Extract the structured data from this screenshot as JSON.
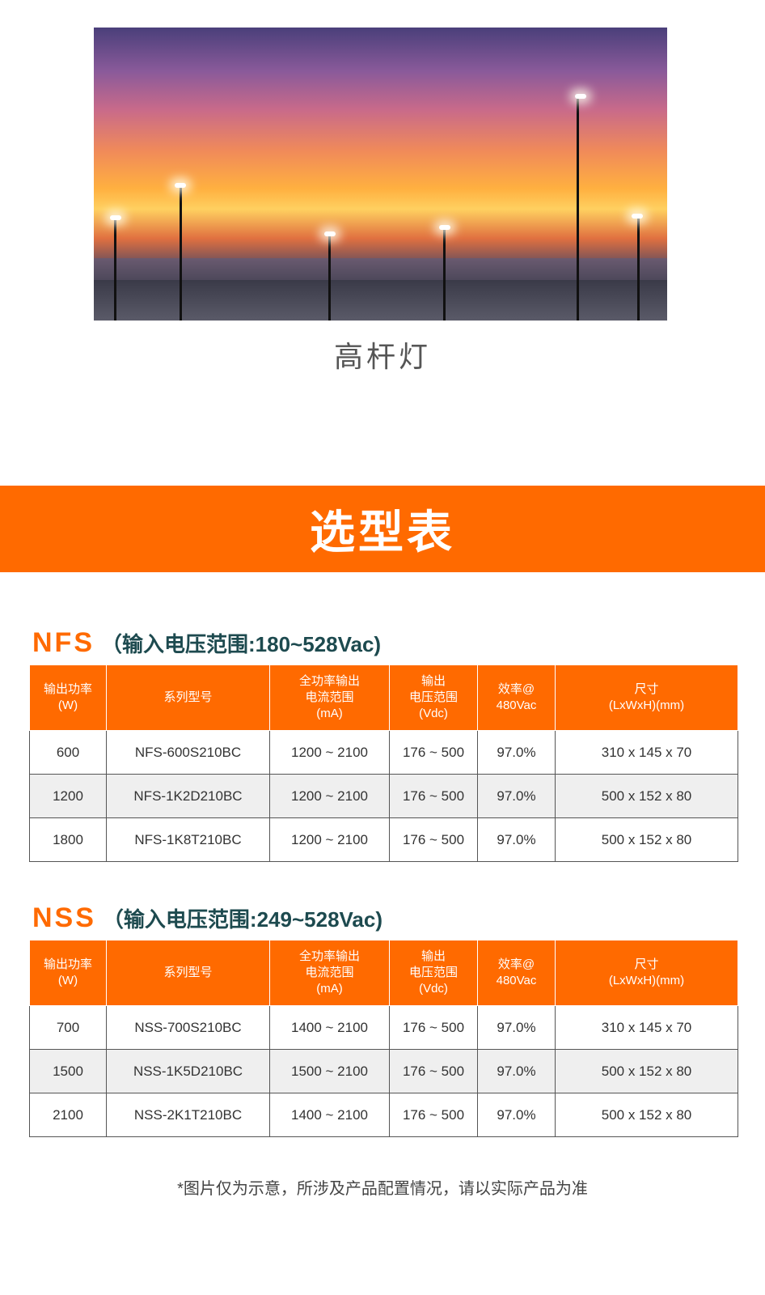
{
  "caption": "高杆灯",
  "banner": "选型表",
  "headers": [
    "输出功率\n(W)",
    "系列型号",
    "全功率输出\n电流范围\n(mA)",
    "输出\n电压范围\n(Vdc)",
    "效率@\n480Vac",
    "尺寸\n(LxWxH)(mm)"
  ],
  "sections": [
    {
      "code": "NFS",
      "range": "（输入电压范围:180~528Vac)",
      "rows": [
        [
          "600",
          "NFS-600S210BC",
          "1200 ~ 2100",
          "176 ~ 500",
          "97.0%",
          "310 x 145 x 70"
        ],
        [
          "1200",
          "NFS-1K2D210BC",
          "1200 ~ 2100",
          "176 ~ 500",
          "97.0%",
          "500 x 152 x 80"
        ],
        [
          "1800",
          "NFS-1K8T210BC",
          "1200 ~ 2100",
          "176 ~ 500",
          "97.0%",
          "500 x 152 x 80"
        ]
      ]
    },
    {
      "code": "NSS",
      "range": "（输入电压范围:249~528Vac)",
      "rows": [
        [
          "700",
          "NSS-700S210BC",
          "1400 ~ 2100",
          "176 ~ 500",
          "97.0%",
          "310 x 145 x 70"
        ],
        [
          "1500",
          "NSS-1K5D210BC",
          "1500 ~ 2100",
          "176 ~ 500",
          "97.0%",
          "500 x 152 x 80"
        ],
        [
          "2100",
          "NSS-2K1T210BC",
          "1400 ~ 2100",
          "176 ~ 500",
          "97.0%",
          "500 x 152 x 80"
        ]
      ]
    }
  ],
  "note": "*图片仅为示意，所涉及产品配置情况，请以实际产品为准",
  "colors": {
    "accent": "#ff6a00",
    "title": "#1d4a4f"
  }
}
